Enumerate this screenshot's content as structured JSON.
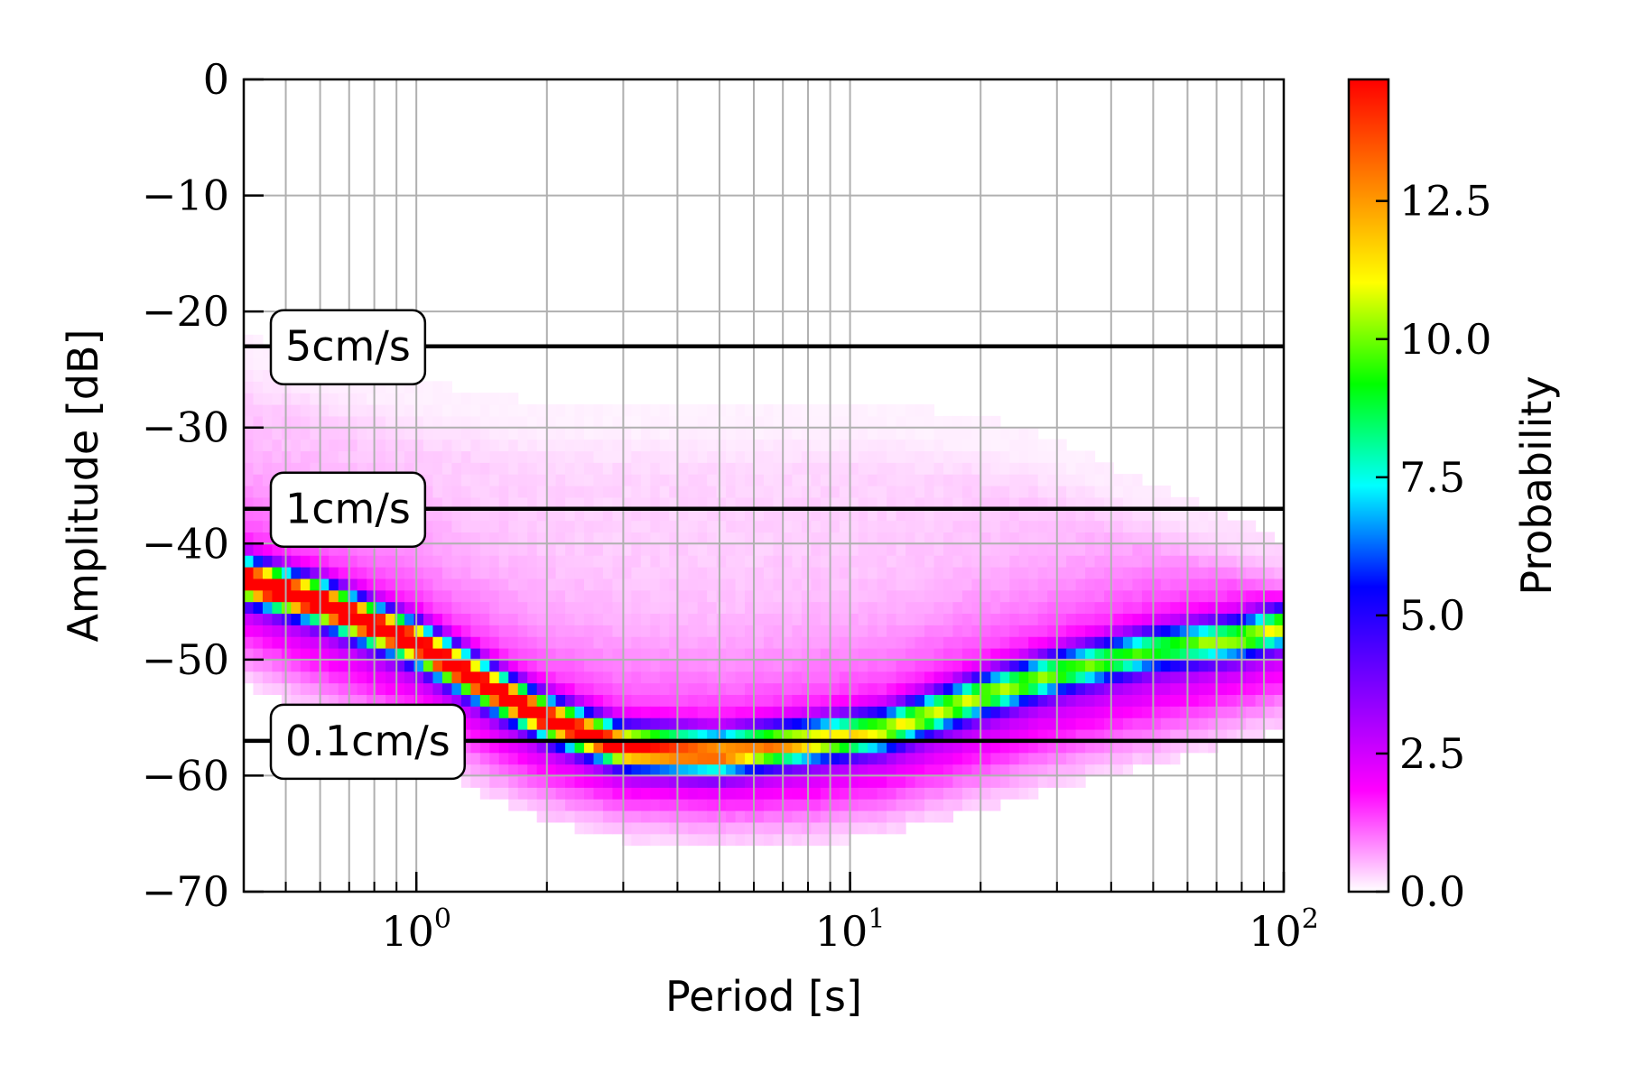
{
  "chart_data": {
    "type": "heatmap",
    "title": "",
    "xlabel": "Period [s]",
    "ylabel": "Amplitude [dB]",
    "x_scale": "log",
    "xlim": [
      0.4,
      100
    ],
    "ylim": [
      -70,
      0
    ],
    "grid": true,
    "x_tick_labels": [
      {
        "value": 1,
        "base": "10",
        "exp": "0"
      },
      {
        "value": 10,
        "base": "10",
        "exp": "1"
      },
      {
        "value": 100,
        "base": "10",
        "exp": "2"
      }
    ],
    "y_ticks": [
      0,
      -10,
      -20,
      -30,
      -40,
      -50,
      -60,
      -70
    ],
    "y_tick_labels": [
      "0",
      "−10",
      "−20",
      "−30",
      "−40",
      "−50",
      "−60",
      "−70"
    ],
    "colorbar": {
      "label": "Probability",
      "min": 0,
      "max": 14.7,
      "colormap": [
        "#ffffff",
        "#ff00ff",
        "#8000ff",
        "#0000ff",
        "#00ffff",
        "#00ff00",
        "#ffff00",
        "#ff8000",
        "#ff0000"
      ],
      "ticks": [
        0.0,
        2.5,
        5.0,
        7.5,
        10.0,
        12.5
      ],
      "tick_labels": [
        "0.0",
        "2.5",
        "5.0",
        "7.5",
        "10.0",
        "12.5"
      ]
    },
    "reference_lines": [
      {
        "label": "5cm/s",
        "y": -23
      },
      {
        "label": "1cm/s",
        "y": -37
      },
      {
        "label": "0.1cm/s",
        "y": -57
      }
    ],
    "mode_curve": {
      "period": [
        0.4,
        0.6,
        1,
        1.5,
        2,
        3,
        5,
        8,
        12,
        20,
        30,
        50,
        80,
        100
      ],
      "amplitude_db": [
        -43,
        -45,
        -48.5,
        -52.5,
        -55,
        -57.5,
        -58,
        -57,
        -56,
        -53,
        -51,
        -49,
        -48,
        -47
      ]
    },
    "mode_peak_probability": [
      14.5,
      14.5,
      14.2,
      13.8,
      13.5,
      12.5,
      11,
      9,
      8,
      7.5,
      7,
      6.5,
      7.5,
      8
    ],
    "envelope_lower_db": [
      -52,
      -55,
      -58,
      -62,
      -64,
      -65.5,
      -66,
      -66,
      -65,
      -63,
      -61,
      -59,
      -57,
      -56
    ],
    "envelope_upper_db": [
      -22,
      -24,
      -26,
      -27,
      -28,
      -28,
      -28,
      -28,
      -28,
      -29,
      -31,
      -35,
      -38,
      -40
    ]
  }
}
